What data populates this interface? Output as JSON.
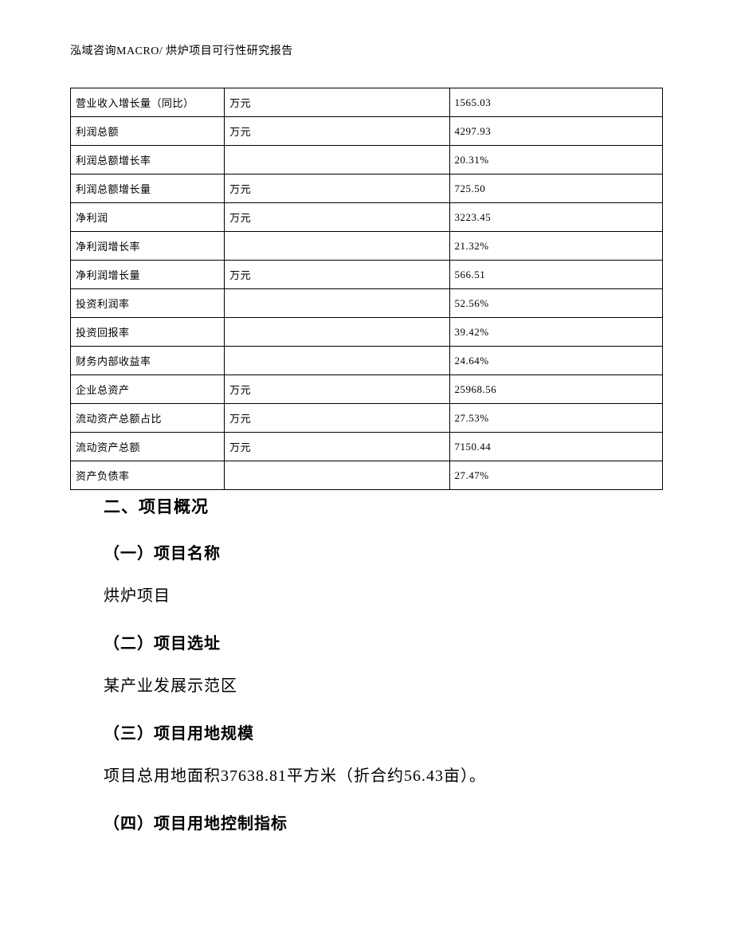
{
  "header": {
    "text": "泓域咨询MACRO/   烘炉项目可行性研究报告"
  },
  "table": {
    "border_color": "#000000",
    "font_size": 13,
    "rows": [
      {
        "label": "营业收入增长量（同比）",
        "unit": "万元",
        "value": "1565.03"
      },
      {
        "label": "利润总额",
        "unit": "万元",
        "value": "4297.93"
      },
      {
        "label": "利润总额增长率",
        "unit": "",
        "value": "20.31%"
      },
      {
        "label": "利润总额增长量",
        "unit": "万元",
        "value": "725.50"
      },
      {
        "label": "净利润",
        "unit": "万元",
        "value": "3223.45"
      },
      {
        "label": "净利润增长率",
        "unit": "",
        "value": "21.32%"
      },
      {
        "label": "净利润增长量",
        "unit": "万元",
        "value": "566.51"
      },
      {
        "label": "投资利润率",
        "unit": "",
        "value": "52.56%"
      },
      {
        "label": "投资回报率",
        "unit": "",
        "value": "39.42%"
      },
      {
        "label": "财务内部收益率",
        "unit": "",
        "value": "24.64%"
      },
      {
        "label": "企业总资产",
        "unit": "万元",
        "value": "25968.56"
      },
      {
        "label": "流动资产总额占比",
        "unit": "万元",
        "value": "27.53%"
      },
      {
        "label": "流动资产总额",
        "unit": "万元",
        "value": "7150.44"
      },
      {
        "label": "资产负债率",
        "unit": "",
        "value": "27.47%"
      }
    ]
  },
  "sections": {
    "main_heading": "二、项目概况",
    "sub1_heading": "（一）项目名称",
    "sub1_body": "烘炉项目",
    "sub2_heading": "（二）项目选址",
    "sub2_body": "某产业发展示范区",
    "sub3_heading": "（三）项目用地规模",
    "sub3_body": "项目总用地面积37638.81平方米（折合约56.43亩）。",
    "sub4_heading": "（四）项目用地控制指标"
  }
}
